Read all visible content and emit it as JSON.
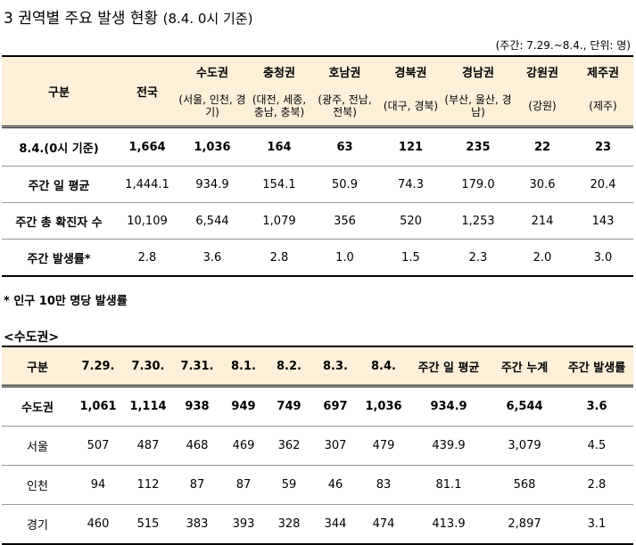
{
  "heading": {
    "title": "3 권역별 주요 발생 현황",
    "subtitle": "(8.4. 0시 기준)"
  },
  "unit_note": "(주간: 7.29.~8.4., 단위: 명)",
  "table1": {
    "corner": "구분",
    "national": "전국",
    "regions": [
      {
        "name": "수도권",
        "desc": "(서울, 인천, 경기)"
      },
      {
        "name": "충청권",
        "desc": "(대전, 세종, 충남, 충북)"
      },
      {
        "name": "호남권",
        "desc": "(광주, 전남, 전북)"
      },
      {
        "name": "경북권",
        "desc": "(대구, 경북)"
      },
      {
        "name": "경남권",
        "desc": "(부산, 울산, 경남)"
      },
      {
        "name": "강원권",
        "desc": "(강원)"
      },
      {
        "name": "제주권",
        "desc": "(제주)"
      }
    ],
    "rows": [
      {
        "label": "8.4.(0시 기준)",
        "values": [
          "1,664",
          "1,036",
          "164",
          "63",
          "121",
          "235",
          "22",
          "23"
        ]
      },
      {
        "label": "주간 일 평균",
        "values": [
          "1,444.1",
          "934.9",
          "154.1",
          "50.9",
          "74.3",
          "179.0",
          "30.6",
          "20.4"
        ]
      },
      {
        "label": "주간 총 확진자 수",
        "values": [
          "10,109",
          "6,544",
          "1,079",
          "356",
          "520",
          "1,253",
          "214",
          "143"
        ]
      },
      {
        "label": "주간 발생률*",
        "values": [
          "2.8",
          "3.6",
          "2.8",
          "1.0",
          "1.5",
          "2.3",
          "2.0",
          "3.0"
        ]
      }
    ]
  },
  "footnote": "* 인구 10만 명당 발생률",
  "section_label": "<수도권>",
  "table2": {
    "headers": [
      "구분",
      "7.29.",
      "7.30.",
      "7.31.",
      "8.1.",
      "8.2.",
      "8.3.",
      "8.4.",
      "주간 일 평균",
      "주간 누계",
      "주간 발생률"
    ],
    "rows": [
      {
        "label": "수도권",
        "values": [
          "1,061",
          "1,114",
          "938",
          "949",
          "749",
          "697",
          "1,036",
          "934.9",
          "6,544",
          "3.6"
        ]
      },
      {
        "label": "서울",
        "values": [
          "507",
          "487",
          "468",
          "469",
          "362",
          "307",
          "479",
          "439.9",
          "3,079",
          "4.5"
        ]
      },
      {
        "label": "인천",
        "values": [
          "94",
          "112",
          "87",
          "87",
          "59",
          "46",
          "83",
          "81.1",
          "568",
          "2.8"
        ]
      },
      {
        "label": "경기",
        "values": [
          "460",
          "515",
          "383",
          "393",
          "328",
          "344",
          "474",
          "413.9",
          "2,897",
          "3.1"
        ]
      }
    ]
  }
}
